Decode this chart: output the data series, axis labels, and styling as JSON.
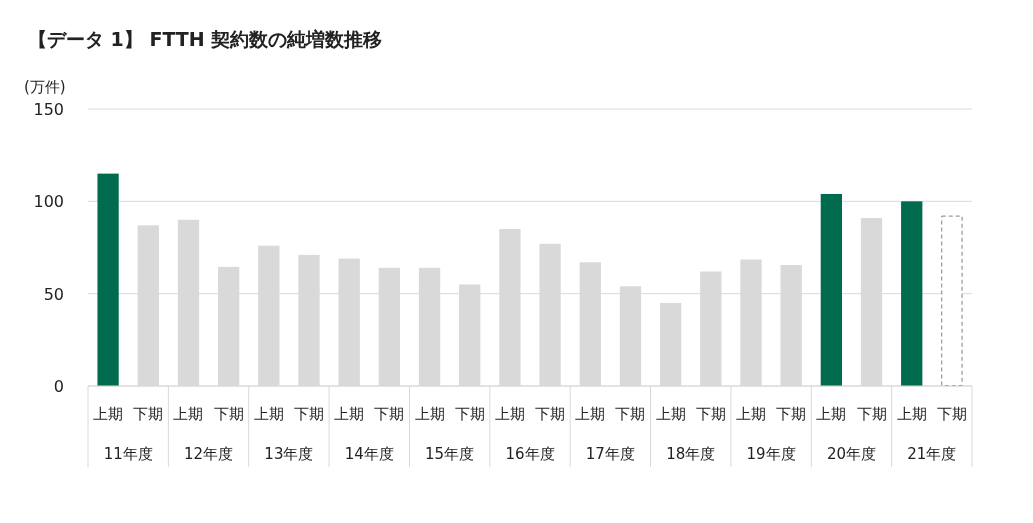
{
  "chart_data": {
    "type": "bar",
    "title": "【データ 1】 FTTH 契約数の純増数推移",
    "ylabel": "(万件)",
    "categories": [
      "上期",
      "下期",
      "上期",
      "下期",
      "上期",
      "下期",
      "上期",
      "下期",
      "上期",
      "下期",
      "上期",
      "下期",
      "上期",
      "下期",
      "上期",
      "下期",
      "上期",
      "下期",
      "上期",
      "下期",
      "上期",
      "下期"
    ],
    "annotations": [
      "11年度",
      "12年度",
      "13年度",
      "14年度",
      "15年度",
      "16年度",
      "17年度",
      "18年度",
      "19年度",
      "20年度",
      "21年度"
    ],
    "stacked": true,
    "series": [
      {
        "colors": [
          "#006b4f",
          "#d9d9d9",
          "#d9d9d9",
          "#d9d9d9",
          "#d9d9d9",
          "#d9d9d9",
          "#d9d9d9",
          "#d9d9d9",
          "#d9d9d9",
          "#d9d9d9",
          "#d9d9d9",
          "#d9d9d9",
          "#d9d9d9",
          "#d9d9d9",
          "#d9d9d9",
          "#d9d9d9",
          "#d9d9d9",
          "#d9d9d9",
          "#006b4f",
          "#d9d9d9",
          "#006b4f",
          null
        ],
        "values": [
          115,
          87,
          90,
          64.5,
          76,
          71,
          69,
          64,
          64,
          55,
          85,
          77,
          67,
          54,
          45,
          62,
          68.5,
          65.5,
          104,
          91,
          100,
          null
        ]
      },
      {
        "color": "#808080",
        "line_style": "dashed",
        "values": [
          null,
          null,
          null,
          null,
          null,
          null,
          null,
          null,
          null,
          null,
          null,
          null,
          null,
          null,
          null,
          null,
          null,
          null,
          null,
          null,
          null,
          92
        ]
      }
    ],
    "ylim": [
      0,
      150
    ],
    "yticks": [
      0,
      50,
      100,
      150
    ],
    "grid": "y"
  }
}
